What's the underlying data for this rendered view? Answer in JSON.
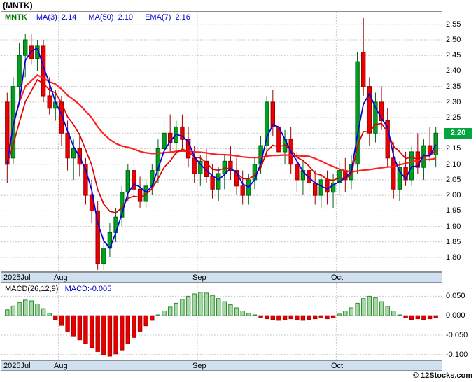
{
  "header": {
    "title": "(MNTK)"
  },
  "footer": {
    "credit": "© 12Stocks.com"
  },
  "main_chart": {
    "legend": {
      "symbol": "MNTK",
      "items": [
        {
          "label": "MA(3)",
          "value": "2.14"
        },
        {
          "label": "MA(50)",
          "value": "2.10"
        },
        {
          "label": "EMA(7)",
          "value": "2.16"
        }
      ]
    },
    "axis": {
      "current": "2.20"
    }
  },
  "macd_panel": {
    "legend_label": "MACD(26,12,9)",
    "legend_value": "MACD:-0.005"
  },
  "colors": {
    "legend_symbol": "#007700",
    "legend_text": "#0000cc",
    "candle_up_stroke": "#006010",
    "candle_up_fill": "#00a020",
    "candle_down_stroke": "#990000",
    "candle_down_fill": "#ee0000",
    "macd_pos_fill": "#a8d8a8",
    "macd_pos_stroke": "#2e8b2e",
    "macd_neg_fill": "#e80000",
    "macd_neg_stroke": "#b00000",
    "current_price_bg": "#00a63e",
    "band_bg": "#cfe0f0",
    "grid": "#c8c8c8"
  },
  "chart_data": [
    {
      "type": "candlestick",
      "title": "MNTK daily price",
      "ylim": [
        1.755,
        2.59
      ],
      "yticks": [
        2.55,
        2.5,
        2.45,
        2.4,
        2.35,
        2.3,
        2.25,
        2.2,
        2.15,
        2.1,
        2.05,
        2.0,
        1.95,
        1.9,
        1.85,
        1.8
      ],
      "current_price": 2.2,
      "months": [
        {
          "label": "2025Jul",
          "index": 0
        },
        {
          "label": "Aug",
          "index": 9
        },
        {
          "label": "Sep",
          "index": 32
        },
        {
          "label": "Oct",
          "index": 55
        }
      ],
      "overlays": [
        {
          "name": "MA(50)",
          "kind": "sma",
          "window": 50,
          "color": "#ff2020",
          "last_value": 2.1
        },
        {
          "name": "EMA(7)",
          "kind": "ema",
          "window": 7,
          "color": "#e00000",
          "last_value": 2.16
        },
        {
          "name": "MA(3)",
          "kind": "sma",
          "window": 3,
          "color": "#0000e0",
          "last_value": 2.14
        }
      ],
      "candles_ohlc": [
        [
          2.3,
          2.33,
          2.04,
          2.1
        ],
        [
          2.12,
          2.38,
          2.1,
          2.35
        ],
        [
          2.35,
          2.49,
          2.3,
          2.45
        ],
        [
          2.45,
          2.52,
          2.38,
          2.5
        ],
        [
          2.48,
          2.52,
          2.42,
          2.44
        ],
        [
          2.44,
          2.5,
          2.4,
          2.48
        ],
        [
          2.48,
          2.5,
          2.3,
          2.32
        ],
        [
          2.32,
          2.38,
          2.26,
          2.28
        ],
        [
          2.28,
          2.34,
          2.24,
          2.3
        ],
        [
          2.3,
          2.32,
          2.16,
          2.2
        ],
        [
          2.2,
          2.24,
          2.08,
          2.12
        ],
        [
          2.12,
          2.18,
          2.05,
          2.15
        ],
        [
          2.15,
          2.2,
          2.06,
          2.1
        ],
        [
          2.1,
          2.12,
          1.97,
          2.0
        ],
        [
          2.0,
          2.05,
          1.91,
          1.95
        ],
        [
          1.95,
          1.98,
          1.76,
          1.78
        ],
        [
          1.78,
          1.85,
          1.76,
          1.83
        ],
        [
          1.83,
          1.91,
          1.8,
          1.88
        ],
        [
          1.88,
          1.96,
          1.85,
          1.93
        ],
        [
          1.93,
          2.03,
          1.9,
          2.01
        ],
        [
          2.01,
          2.1,
          1.98,
          2.08
        ],
        [
          2.08,
          2.12,
          2.0,
          2.02
        ],
        [
          2.02,
          2.06,
          1.96,
          1.98
        ],
        [
          1.98,
          2.05,
          1.96,
          2.03
        ],
        [
          2.03,
          2.1,
          2.0,
          2.08
        ],
        [
          2.08,
          2.18,
          2.04,
          2.15
        ],
        [
          2.15,
          2.25,
          2.12,
          2.2
        ],
        [
          2.2,
          2.26,
          2.14,
          2.17
        ],
        [
          2.17,
          2.24,
          2.13,
          2.22
        ],
        [
          2.22,
          2.26,
          2.15,
          2.18
        ],
        [
          2.18,
          2.22,
          2.09,
          2.12
        ],
        [
          2.12,
          2.16,
          2.04,
          2.07
        ],
        [
          2.07,
          2.13,
          2.03,
          2.11
        ],
        [
          2.11,
          2.15,
          2.04,
          2.06
        ],
        [
          2.06,
          2.1,
          1.99,
          2.02
        ],
        [
          2.02,
          2.09,
          1.98,
          2.07
        ],
        [
          2.07,
          2.13,
          2.02,
          2.11
        ],
        [
          2.11,
          2.16,
          2.05,
          2.08
        ],
        [
          2.08,
          2.12,
          2.0,
          2.03
        ],
        [
          2.03,
          2.08,
          1.97,
          2.0
        ],
        [
          2.0,
          2.07,
          1.97,
          2.05
        ],
        [
          2.05,
          2.12,
          2.02,
          2.1
        ],
        [
          2.1,
          2.19,
          2.07,
          2.16
        ],
        [
          2.16,
          2.32,
          2.12,
          2.3
        ],
        [
          2.3,
          2.34,
          2.19,
          2.22
        ],
        [
          2.22,
          2.26,
          2.11,
          2.14
        ],
        [
          2.14,
          2.21,
          2.1,
          2.18
        ],
        [
          2.18,
          2.22,
          2.07,
          2.1
        ],
        [
          2.1,
          2.14,
          2.01,
          2.05
        ],
        [
          2.05,
          2.11,
          2.0,
          2.08
        ],
        [
          2.08,
          2.12,
          2.01,
          2.04
        ],
        [
          2.04,
          2.08,
          1.97,
          2.0
        ],
        [
          2.0,
          2.07,
          1.96,
          2.05
        ],
        [
          2.05,
          2.08,
          1.97,
          2.01
        ],
        [
          2.01,
          2.07,
          1.96,
          2.04
        ],
        [
          2.04,
          2.11,
          2.0,
          2.08
        ],
        [
          2.08,
          2.12,
          2.01,
          2.05
        ],
        [
          2.05,
          2.13,
          2.02,
          2.1
        ],
        [
          2.1,
          2.46,
          2.07,
          2.43
        ],
        [
          2.46,
          2.57,
          2.32,
          2.35
        ],
        [
          2.35,
          2.38,
          2.16,
          2.2
        ],
        [
          2.2,
          2.33,
          2.17,
          2.3
        ],
        [
          2.3,
          2.35,
          2.21,
          2.24
        ],
        [
          2.24,
          2.28,
          2.09,
          2.12
        ],
        [
          2.12,
          2.17,
          1.99,
          2.02
        ],
        [
          2.02,
          2.11,
          1.98,
          2.09
        ],
        [
          2.09,
          2.14,
          2.03,
          2.05
        ],
        [
          2.05,
          2.16,
          2.03,
          2.14
        ],
        [
          2.14,
          2.2,
          2.07,
          2.09
        ],
        [
          2.09,
          2.18,
          2.05,
          2.16
        ],
        [
          2.16,
          2.22,
          2.11,
          2.13
        ],
        [
          2.13,
          2.22,
          2.09,
          2.2
        ]
      ]
    },
    {
      "type": "bar",
      "title": "MACD(26,12,9) histogram",
      "ylim": [
        -0.113,
        0.083
      ],
      "yticks": [
        0.05,
        0.0,
        -0.05,
        -0.1
      ],
      "last_value": -0.005,
      "values": [
        0.015,
        0.025,
        0.034,
        0.04,
        0.038,
        0.03,
        0.018,
        0.006,
        -0.01,
        -0.025,
        -0.04,
        -0.052,
        -0.062,
        -0.072,
        -0.082,
        -0.092,
        -0.1,
        -0.104,
        -0.098,
        -0.088,
        -0.072,
        -0.056,
        -0.04,
        -0.026,
        -0.012,
        0.002,
        0.012,
        0.022,
        0.032,
        0.042,
        0.05,
        0.056,
        0.06,
        0.058,
        0.052,
        0.044,
        0.036,
        0.028,
        0.02,
        0.012,
        0.006,
        0.002,
        -0.004,
        -0.008,
        -0.01,
        -0.012,
        -0.01,
        -0.008,
        -0.01,
        -0.012,
        -0.01,
        -0.008,
        -0.006,
        -0.008,
        -0.006,
        0.004,
        0.012,
        0.02,
        0.032,
        0.044,
        0.05,
        0.046,
        0.036,
        0.024,
        0.012,
        0.002,
        -0.006,
        -0.01,
        -0.008,
        -0.01,
        -0.008,
        -0.005
      ]
    }
  ]
}
